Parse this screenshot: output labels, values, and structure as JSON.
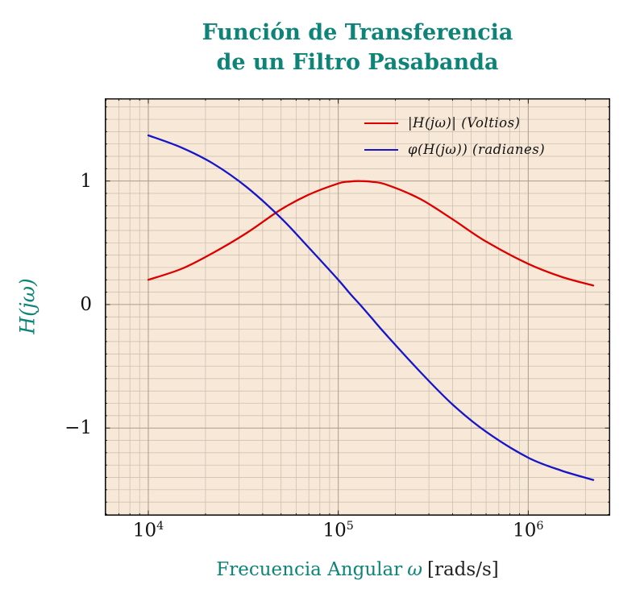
{
  "title": {
    "line1": "Función de Transferencia",
    "line2": "de un Filtro Pasabanda"
  },
  "axes": {
    "y_label": "H(jω)",
    "x_label_main": "Frecuencia Angular",
    "x_label_omega": "ω",
    "x_label_unit": "[rads/s]",
    "x_ticks": [
      {
        "base": "10",
        "exp": "4",
        "value": 10000
      },
      {
        "base": "10",
        "exp": "5",
        "value": 100000
      },
      {
        "base": "10",
        "exp": "6",
        "value": 1000000
      }
    ],
    "y_ticks": [
      {
        "label": "1",
        "value": 1
      },
      {
        "label": "0",
        "value": 0
      },
      {
        "label": "−1",
        "value": -1
      }
    ]
  },
  "legend": [
    {
      "label": "|H(jω)| (Voltios)",
      "color": "#dc0000"
    },
    {
      "label": "φ(H(jω)) (radianes)",
      "color": "#1616c8"
    }
  ],
  "colors": {
    "teal": "#0e8478",
    "red": "#dc0000",
    "blue": "#1616c8",
    "plot_bg": "#f7e8d7",
    "grid_minor": "#c9bcad",
    "grid_major": "#a99c8b",
    "axis": "#111111"
  },
  "chart_data": {
    "type": "line",
    "title": "Función de Transferencia de un Filtro Pasabanda",
    "xlabel": "Frecuencia Angular ω [rads/s]",
    "ylabel": "H(jω)",
    "x_scale": "log",
    "grid": "both",
    "xlim": [
      5900,
      2700000
    ],
    "ylim": [
      -1.71,
      1.67
    ],
    "x": [
      10000,
      15000,
      22000,
      33000,
      50000,
      70000,
      100000,
      115000,
      130000,
      150000,
      180000,
      270000,
      400000,
      600000,
      1000000,
      1500000,
      2200000
    ],
    "series": [
      {
        "name": "|H(jω)| (Voltios)",
        "color": "#dc0000",
        "values": [
          0.2,
          0.29,
          0.42,
          0.58,
          0.77,
          0.89,
          0.98,
          0.996,
          1.0,
          0.994,
          0.97,
          0.855,
          0.69,
          0.51,
          0.33,
          0.224,
          0.154
        ]
      },
      {
        "name": "φ(H(jω)) (radianes)",
        "color": "#1616c8",
        "values": [
          1.37,
          1.27,
          1.14,
          0.95,
          0.7,
          0.46,
          0.2,
          0.09,
          0.0,
          -0.11,
          -0.25,
          -0.545,
          -0.81,
          -1.03,
          -1.24,
          -1.345,
          -1.42
        ]
      }
    ]
  }
}
